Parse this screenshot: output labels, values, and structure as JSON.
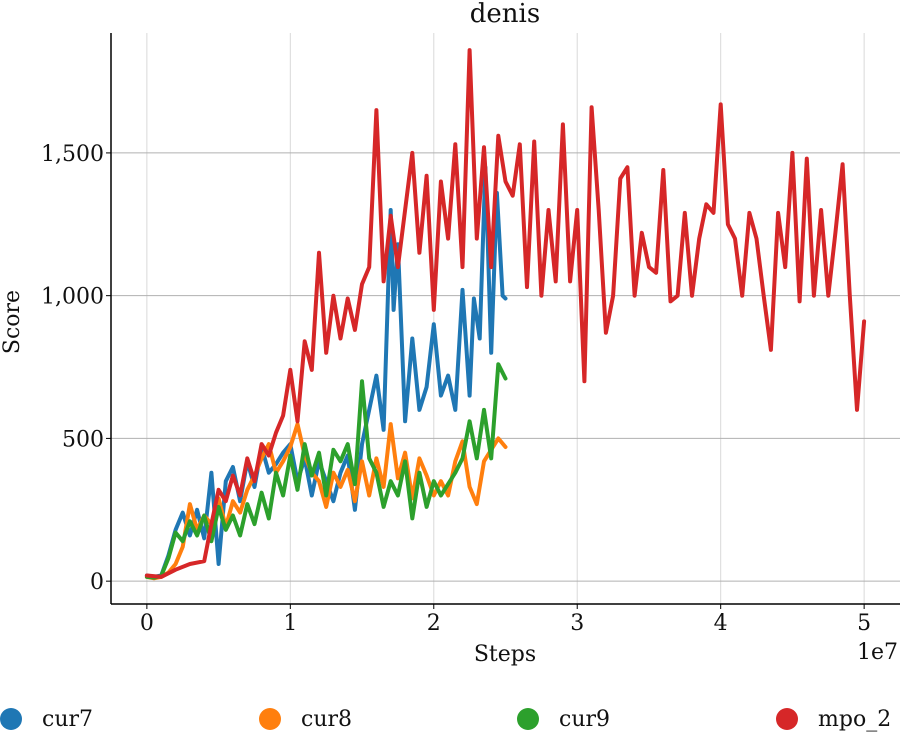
{
  "chart_data": {
    "type": "line",
    "title": "denis",
    "xlabel": "Steps",
    "ylabel": "Score",
    "x_offset_label": "1e7",
    "xlim": [
      -0.25,
      5.25
    ],
    "ylim": [
      -80,
      1920
    ],
    "x_ticks": [
      0,
      1,
      2,
      3,
      4,
      5
    ],
    "x_tick_labels": [
      "0",
      "1",
      "2",
      "3",
      "4",
      "5"
    ],
    "y_ticks": [
      0,
      500,
      1000,
      1500
    ],
    "y_tick_labels": [
      "0",
      "500",
      "1,000",
      "1,500"
    ],
    "grid": true,
    "legend_position": "bottom",
    "series": [
      {
        "name": "cur7",
        "color": "#1f77b4",
        "x": [
          0.0,
          0.05,
          0.1,
          0.15,
          0.2,
          0.25,
          0.3,
          0.35,
          0.4,
          0.45,
          0.5,
          0.55,
          0.6,
          0.65,
          0.7,
          0.75,
          0.8,
          0.85,
          0.9,
          0.95,
          1.0,
          1.05,
          1.1,
          1.15,
          1.2,
          1.25,
          1.3,
          1.35,
          1.4,
          1.45,
          1.5,
          1.55,
          1.6,
          1.65,
          1.7,
          1.72,
          1.75,
          1.8,
          1.85,
          1.9,
          1.95,
          2.0,
          2.05,
          2.1,
          2.15,
          2.2,
          2.25,
          2.28,
          2.32,
          2.36,
          2.4,
          2.44,
          2.48,
          2.5
        ],
        "y": [
          20,
          15,
          20,
          90,
          180,
          240,
          160,
          250,
          150,
          380,
          60,
          350,
          400,
          280,
          420,
          330,
          470,
          380,
          410,
          450,
          480,
          350,
          430,
          300,
          420,
          350,
          280,
          380,
          440,
          250,
          480,
          600,
          720,
          530,
          1300,
          950,
          1180,
          560,
          850,
          600,
          680,
          900,
          650,
          720,
          600,
          1020,
          650,
          990,
          850,
          1450,
          800,
          1360,
          1000,
          990
        ]
      },
      {
        "name": "cur8",
        "color": "#ff7f0e",
        "x": [
          0.0,
          0.05,
          0.1,
          0.15,
          0.2,
          0.25,
          0.3,
          0.35,
          0.4,
          0.45,
          0.5,
          0.55,
          0.6,
          0.65,
          0.7,
          0.75,
          0.8,
          0.85,
          0.9,
          0.95,
          1.0,
          1.05,
          1.1,
          1.15,
          1.2,
          1.25,
          1.3,
          1.35,
          1.4,
          1.45,
          1.5,
          1.55,
          1.6,
          1.65,
          1.7,
          1.75,
          1.8,
          1.85,
          1.9,
          1.95,
          2.0,
          2.05,
          2.1,
          2.15,
          2.2,
          2.25,
          2.3,
          2.35,
          2.4,
          2.45,
          2.5
        ],
        "y": [
          15,
          10,
          15,
          30,
          60,
          120,
          270,
          180,
          230,
          200,
          290,
          190,
          280,
          240,
          320,
          370,
          430,
          480,
          380,
          420,
          470,
          550,
          440,
          380,
          350,
          260,
          380,
          330,
          390,
          280,
          420,
          300,
          430,
          330,
          550,
          360,
          450,
          290,
          430,
          370,
          300,
          350,
          300,
          420,
          490,
          330,
          270,
          420,
          460,
          500,
          470
        ]
      },
      {
        "name": "cur9",
        "color": "#2ca02c",
        "x": [
          0.0,
          0.05,
          0.1,
          0.15,
          0.2,
          0.25,
          0.3,
          0.35,
          0.4,
          0.45,
          0.5,
          0.55,
          0.6,
          0.65,
          0.7,
          0.75,
          0.8,
          0.85,
          0.9,
          0.95,
          1.0,
          1.05,
          1.1,
          1.15,
          1.2,
          1.25,
          1.3,
          1.35,
          1.4,
          1.45,
          1.5,
          1.55,
          1.6,
          1.65,
          1.7,
          1.75,
          1.8,
          1.85,
          1.9,
          1.95,
          2.0,
          2.05,
          2.1,
          2.15,
          2.2,
          2.25,
          2.3,
          2.35,
          2.4,
          2.45,
          2.5
        ],
        "y": [
          15,
          12,
          18,
          80,
          170,
          140,
          210,
          160,
          230,
          140,
          260,
          180,
          230,
          160,
          270,
          200,
          310,
          220,
          380,
          300,
          440,
          320,
          480,
          370,
          450,
          300,
          460,
          420,
          480,
          340,
          700,
          430,
          380,
          260,
          350,
          300,
          420,
          220,
          380,
          260,
          350,
          300,
          340,
          380,
          430,
          560,
          430,
          600,
          430,
          760,
          710
        ]
      },
      {
        "name": "mpo_2",
        "color": "#d62728",
        "x": [
          0.0,
          0.1,
          0.2,
          0.3,
          0.4,
          0.45,
          0.5,
          0.55,
          0.6,
          0.65,
          0.7,
          0.75,
          0.8,
          0.85,
          0.9,
          0.95,
          1.0,
          1.05,
          1.1,
          1.15,
          1.2,
          1.25,
          1.3,
          1.35,
          1.4,
          1.45,
          1.5,
          1.55,
          1.6,
          1.65,
          1.7,
          1.75,
          1.8,
          1.85,
          1.9,
          1.95,
          2.0,
          2.05,
          2.1,
          2.15,
          2.2,
          2.25,
          2.3,
          2.35,
          2.4,
          2.45,
          2.5,
          2.55,
          2.6,
          2.65,
          2.7,
          2.75,
          2.8,
          2.85,
          2.9,
          2.95,
          3.0,
          3.05,
          3.1,
          3.15,
          3.2,
          3.25,
          3.3,
          3.35,
          3.4,
          3.45,
          3.5,
          3.55,
          3.6,
          3.65,
          3.7,
          3.75,
          3.8,
          3.85,
          3.9,
          3.95,
          4.0,
          4.05,
          4.1,
          4.15,
          4.2,
          4.25,
          4.3,
          4.35,
          4.4,
          4.45,
          4.5,
          4.55,
          4.6,
          4.65,
          4.7,
          4.75,
          4.8,
          4.85,
          4.9,
          4.95,
          5.0
        ],
        "y": [
          20,
          15,
          40,
          60,
          70,
          200,
          320,
          280,
          370,
          300,
          430,
          350,
          480,
          440,
          520,
          580,
          740,
          560,
          840,
          740,
          1150,
          800,
          1000,
          850,
          990,
          880,
          1040,
          1100,
          1650,
          1050,
          1280,
          1100,
          1300,
          1500,
          1150,
          1420,
          950,
          1400,
          1200,
          1530,
          1100,
          1860,
          1200,
          1520,
          1100,
          1560,
          1400,
          1350,
          1530,
          1030,
          1540,
          1000,
          1300,
          1050,
          1600,
          1050,
          1300,
          700,
          1660,
          1300,
          870,
          1000,
          1410,
          1450,
          1000,
          1220,
          1100,
          1080,
          1440,
          980,
          1000,
          1290,
          1000,
          1200,
          1320,
          1290,
          1670,
          1250,
          1200,
          1000,
          1290,
          1200,
          1000,
          810,
          1290,
          1100,
          1500,
          980,
          1480,
          1000,
          1300,
          1000,
          1220,
          1460,
          1000,
          600,
          910
        ]
      }
    ]
  }
}
